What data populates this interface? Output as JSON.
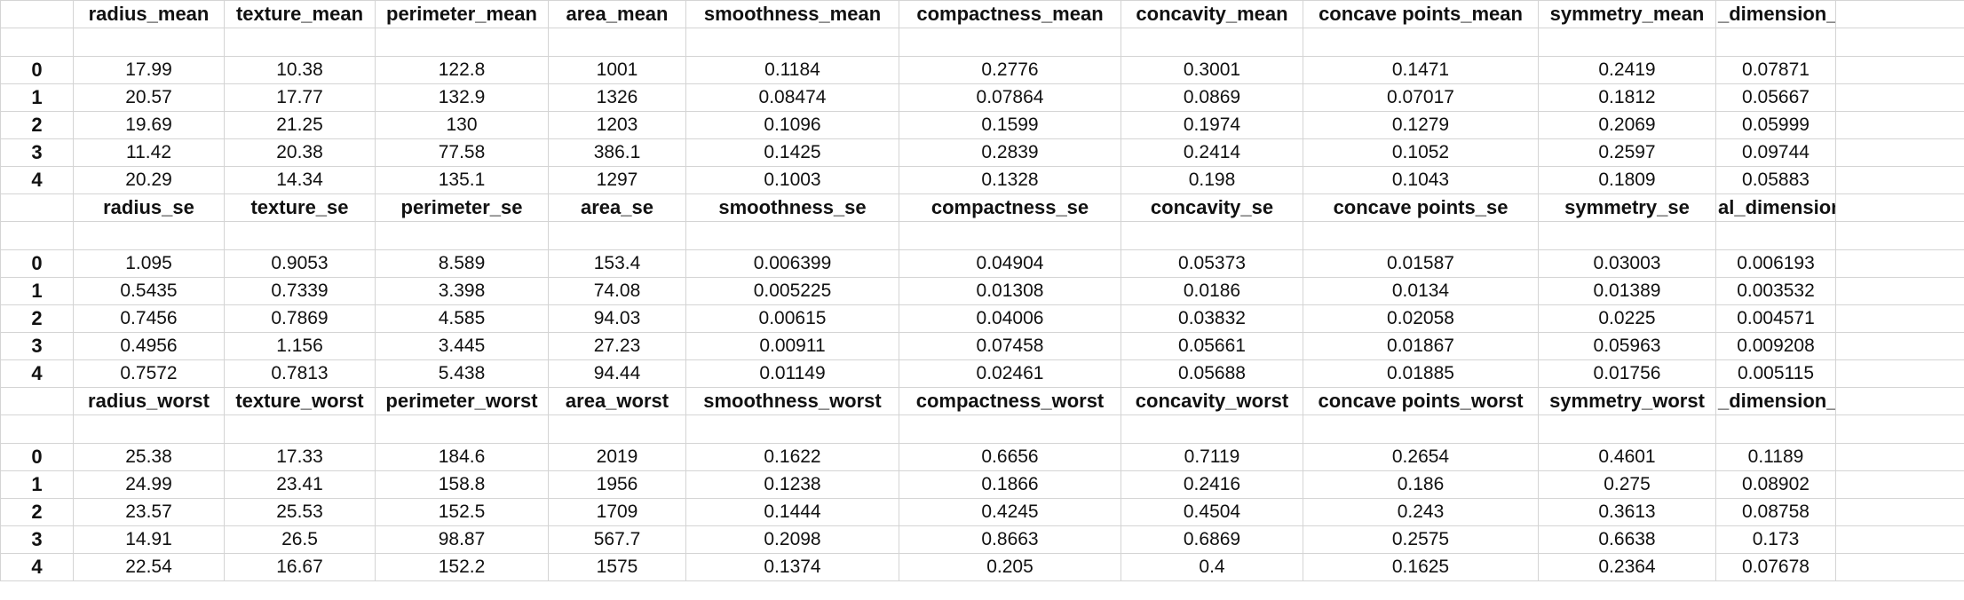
{
  "sections": [
    {
      "columns": [
        "radius_mean",
        "texture_mean",
        "perimeter_mean",
        "area_mean",
        "smoothness_mean",
        "compactness_mean",
        "concavity_mean",
        "concave points_mean",
        "symmetry_mean",
        "_dimension_mean"
      ],
      "rows": [
        {
          "index": "0",
          "values": [
            "17.99",
            "10.38",
            "122.8",
            "1001",
            "0.1184",
            "0.2776",
            "0.3001",
            "0.1471",
            "0.2419",
            "0.07871"
          ]
        },
        {
          "index": "1",
          "values": [
            "20.57",
            "17.77",
            "132.9",
            "1326",
            "0.08474",
            "0.07864",
            "0.0869",
            "0.07017",
            "0.1812",
            "0.05667"
          ]
        },
        {
          "index": "2",
          "values": [
            "19.69",
            "21.25",
            "130",
            "1203",
            "0.1096",
            "0.1599",
            "0.1974",
            "0.1279",
            "0.2069",
            "0.05999"
          ]
        },
        {
          "index": "3",
          "values": [
            "11.42",
            "20.38",
            "77.58",
            "386.1",
            "0.1425",
            "0.2839",
            "0.2414",
            "0.1052",
            "0.2597",
            "0.09744"
          ]
        },
        {
          "index": "4",
          "values": [
            "20.29",
            "14.34",
            "135.1",
            "1297",
            "0.1003",
            "0.1328",
            "0.198",
            "0.1043",
            "0.1809",
            "0.05883"
          ]
        }
      ]
    },
    {
      "columns": [
        "radius_se",
        "texture_se",
        "perimeter_se",
        "area_se",
        "smoothness_se",
        "compactness_se",
        "concavity_se",
        "concave points_se",
        "symmetry_se",
        "al_dimension_se"
      ],
      "rows": [
        {
          "index": "0",
          "values": [
            "1.095",
            "0.9053",
            "8.589",
            "153.4",
            "0.006399",
            "0.04904",
            "0.05373",
            "0.01587",
            "0.03003",
            "0.006193"
          ]
        },
        {
          "index": "1",
          "values": [
            "0.5435",
            "0.7339",
            "3.398",
            "74.08",
            "0.005225",
            "0.01308",
            "0.0186",
            "0.0134",
            "0.01389",
            "0.003532"
          ]
        },
        {
          "index": "2",
          "values": [
            "0.7456",
            "0.7869",
            "4.585",
            "94.03",
            "0.00615",
            "0.04006",
            "0.03832",
            "0.02058",
            "0.0225",
            "0.004571"
          ]
        },
        {
          "index": "3",
          "values": [
            "0.4956",
            "1.156",
            "3.445",
            "27.23",
            "0.00911",
            "0.07458",
            "0.05661",
            "0.01867",
            "0.05963",
            "0.009208"
          ]
        },
        {
          "index": "4",
          "values": [
            "0.7572",
            "0.7813",
            "5.438",
            "94.44",
            "0.01149",
            "0.02461",
            "0.05688",
            "0.01885",
            "0.01756",
            "0.005115"
          ]
        }
      ]
    },
    {
      "columns": [
        "radius_worst",
        "texture_worst",
        "perimeter_worst",
        "area_worst",
        "smoothness_worst",
        "compactness_worst",
        "concavity_worst",
        "concave points_worst",
        "symmetry_worst",
        "_dimension_worst"
      ],
      "rows": [
        {
          "index": "0",
          "values": [
            "25.38",
            "17.33",
            "184.6",
            "2019",
            "0.1622",
            "0.6656",
            "0.7119",
            "0.2654",
            "0.4601",
            "0.1189"
          ]
        },
        {
          "index": "1",
          "values": [
            "24.99",
            "23.41",
            "158.8",
            "1956",
            "0.1238",
            "0.1866",
            "0.2416",
            "0.186",
            "0.275",
            "0.08902"
          ]
        },
        {
          "index": "2",
          "values": [
            "23.57",
            "25.53",
            "152.5",
            "1709",
            "0.1444",
            "0.4245",
            "0.4504",
            "0.243",
            "0.3613",
            "0.08758"
          ]
        },
        {
          "index": "3",
          "values": [
            "14.91",
            "26.5",
            "98.87",
            "567.7",
            "0.2098",
            "0.8663",
            "0.6869",
            "0.2575",
            "0.6638",
            "0.173"
          ]
        },
        {
          "index": "4",
          "values": [
            "22.54",
            "16.67",
            "152.2",
            "1575",
            "0.1374",
            "0.205",
            "0.4",
            "0.1625",
            "0.2364",
            "0.07678"
          ]
        }
      ]
    }
  ]
}
